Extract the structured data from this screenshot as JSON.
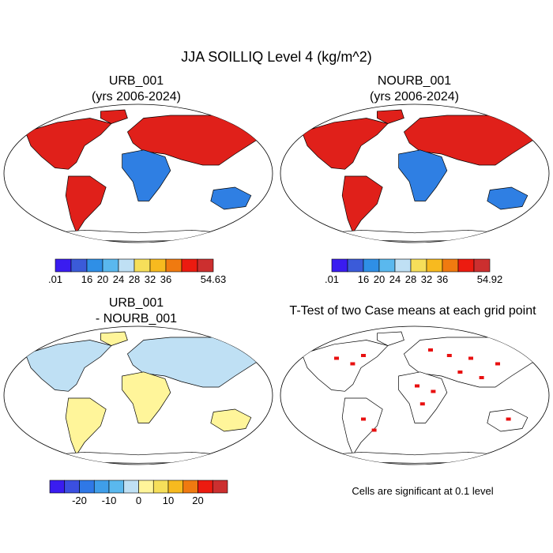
{
  "figure": {
    "title": "JJA SOILLIQ Level 4 (kg/m^2)"
  },
  "panels": {
    "urb": {
      "title_line1": "URB_001",
      "title_line2": "(yrs 2006-2024)"
    },
    "nourb": {
      "title_line1": "NOURB_001",
      "title_line2": "(yrs 2006-2024)"
    },
    "diff": {
      "title_line1": "URB_001",
      "title_line2": "- NOURB_001"
    },
    "ttest": {
      "title_line1": "T-Test of two Case means at each grid point",
      "footnote": "Cells are significant at 0.1 level"
    }
  },
  "colorbars": {
    "urb": {
      "colors": [
        "#3a1cf0",
        "#3b5bd9",
        "#2f8fe6",
        "#5ab8ee",
        "#bfe0f4",
        "#f6df5a",
        "#f7ba1f",
        "#f07a10",
        "#ec1b10",
        "#cc2f2f"
      ],
      "labels": [
        ".01",
        "16",
        "20",
        "24",
        "28",
        "32",
        "36",
        "54.63"
      ]
    },
    "nourb": {
      "colors": [
        "#3a1cf0",
        "#3b5bd9",
        "#2f8fe6",
        "#5ab8ee",
        "#bfe0f4",
        "#f6df5a",
        "#f7ba1f",
        "#f07a10",
        "#ec1b10",
        "#cc2f2f"
      ],
      "labels": [
        ".01",
        "16",
        "20",
        "24",
        "28",
        "32",
        "36",
        "54.92"
      ]
    },
    "diff": {
      "colors": [
        "#3a1cf0",
        "#3b4fe0",
        "#2f78e6",
        "#3f9ee9",
        "#5ab8ee",
        "#bfe0f4",
        "#fff59a",
        "#f6df5a",
        "#f7ba1f",
        "#f07a10",
        "#ec1b10",
        "#cc2f2f"
      ],
      "labels": [
        "-20",
        "-10",
        "0",
        "10",
        "20"
      ]
    }
  },
  "colors": {
    "ocean": "#ffffff",
    "coast": "#000000",
    "wet_red": "#e0201a",
    "dry_blue": "#2f7fe3",
    "diff_light_blue": "#bfe0f4",
    "diff_yellow": "#fff59a",
    "sig_red": "#e81010"
  }
}
